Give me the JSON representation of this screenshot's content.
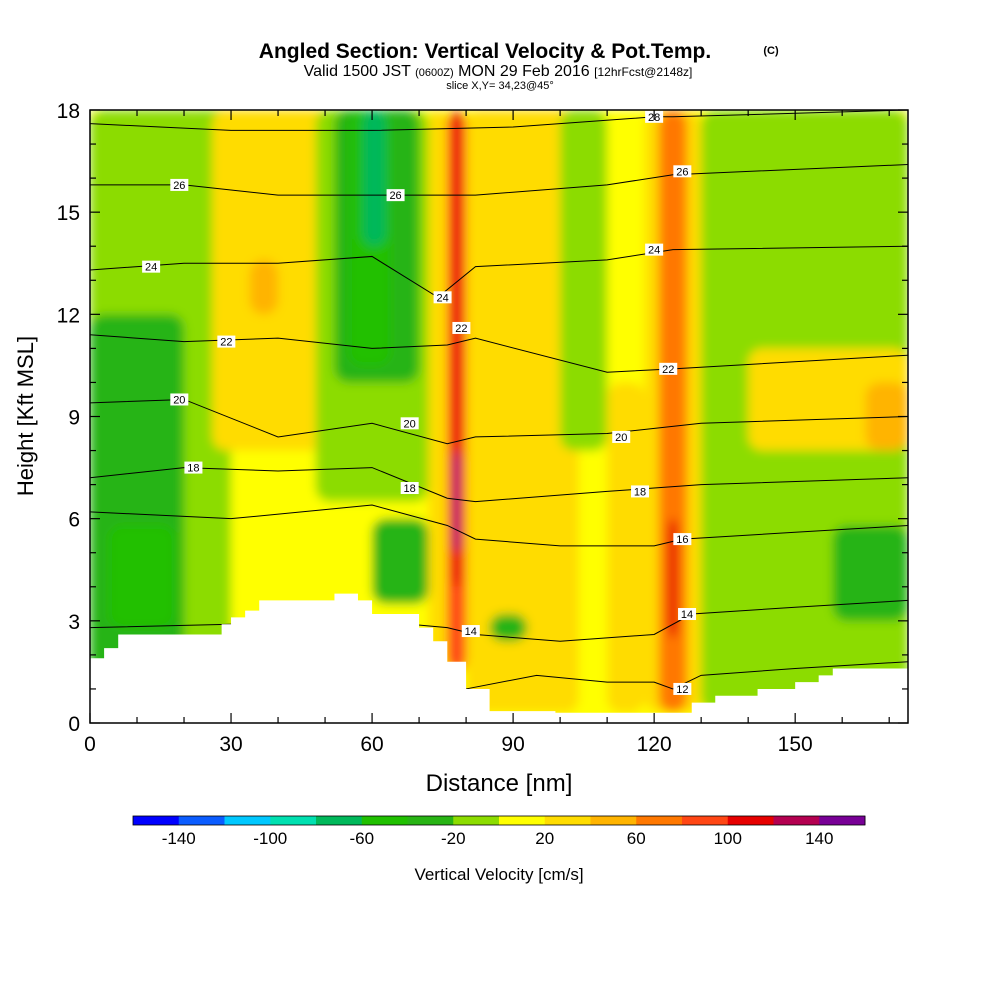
{
  "chart_data": {
    "type": "heatmap",
    "title": "Angled Section: Vertical Velocity & Pot.Temp.",
    "title_unit": "(C)",
    "subtitle_a": "Valid 1500 JST",
    "subtitle_z": "(0600Z)",
    "subtitle_b": "MON 29 Feb 2016",
    "subtitle_fcst": "[12hrFcst@2148z]",
    "slice_label": "slice X,Y= 34,23@45°",
    "xlabel": "Distance [nm]",
    "ylabel": "Height [Kft MSL]",
    "xlim": [
      0,
      174
    ],
    "ylim": [
      0,
      18
    ],
    "x_ticks": [
      "0",
      "30",
      "60",
      "90",
      "120",
      "150"
    ],
    "y_ticks": [
      "0",
      "3",
      "6",
      "9",
      "12",
      "15",
      "18"
    ],
    "colorbar": {
      "label": "Vertical Velocity [cm/s]",
      "tick_labels": [
        "-140",
        "-100",
        "-60",
        "-20",
        "20",
        "60",
        "100",
        "140"
      ],
      "bins": [
        -160,
        -140,
        -120,
        -100,
        -80,
        -60,
        -40,
        -20,
        0,
        20,
        40,
        60,
        80,
        100,
        120,
        140,
        160
      ],
      "colors": [
        "#0000ff",
        "#0a5cff",
        "#00c8ff",
        "#00e0b0",
        "#00b85a",
        "#20c000",
        "#28b414",
        "#8cdc00",
        "#ffff00",
        "#ffdc00",
        "#ffb400",
        "#ff7800",
        "#ff4614",
        "#e60000",
        "#b40050",
        "#780096"
      ]
    },
    "terrain": {
      "x": [
        0,
        3,
        3,
        6,
        6,
        28,
        28,
        30,
        30,
        33,
        33,
        36,
        36,
        52,
        52,
        57,
        57,
        60,
        60,
        70,
        70,
        73,
        73,
        76,
        76,
        80,
        80,
        85,
        85,
        99,
        99,
        120,
        120,
        128,
        128,
        133,
        133,
        142,
        142,
        150,
        150,
        155,
        155,
        158,
        158,
        162,
        162,
        174
      ],
      "y": [
        1.9,
        1.9,
        2.2,
        2.2,
        2.6,
        2.6,
        2.9,
        2.9,
        3.1,
        3.1,
        3.3,
        3.3,
        3.6,
        3.6,
        3.8,
        3.8,
        3.6,
        3.6,
        3.2,
        3.2,
        2.8,
        2.8,
        2.4,
        2.4,
        1.8,
        1.8,
        1.0,
        1.0,
        0.35,
        0.35,
        0.3,
        0.3,
        0.3,
        0.3,
        0.6,
        0.6,
        0.8,
        0.8,
        1.0,
        1.0,
        1.2,
        1.2,
        1.4,
        1.4,
        1.6,
        1.6,
        1.6,
        1.6
      ]
    },
    "velocity_fields": [
      {
        "x": [
          0,
          174
        ],
        "y": [
          0,
          18
        ],
        "value": 0
      },
      {
        "x": [
          0,
          24
        ],
        "y": [
          0,
          18
        ],
        "value": -20
      },
      {
        "x": [
          0,
          20
        ],
        "y": [
          0,
          12
        ],
        "value": -40
      },
      {
        "x": [
          4,
          18
        ],
        "y": [
          2.8,
          5.8
        ],
        "value": -60
      },
      {
        "x": [
          20,
          30
        ],
        "y": [
          2,
          18
        ],
        "value": -20
      },
      {
        "x": [
          26,
          52
        ],
        "y": [
          8,
          18
        ],
        "value": 20
      },
      {
        "x": [
          34,
          40
        ],
        "y": [
          12,
          13.6
        ],
        "value": 40
      },
      {
        "x": [
          48,
          72
        ],
        "y": [
          6.5,
          18
        ],
        "value": -20
      },
      {
        "x": [
          52,
          70
        ],
        "y": [
          10,
          18
        ],
        "value": -40
      },
      {
        "x": [
          55,
          64
        ],
        "y": [
          10.5,
          18
        ],
        "value": -60
      },
      {
        "x": [
          58,
          63
        ],
        "y": [
          14,
          18
        ],
        "value": -80
      },
      {
        "x": [
          60,
          72
        ],
        "y": [
          3.5,
          6
        ],
        "value": -40
      },
      {
        "x": [
          72,
          76
        ],
        "y": [
          1.5,
          18
        ],
        "value": 20
      },
      {
        "x": [
          76,
          80
        ],
        "y": [
          1.5,
          18
        ],
        "value": 80
      },
      {
        "x": [
          77,
          79
        ],
        "y": [
          4,
          18
        ],
        "value": 110
      },
      {
        "x": [
          77.5,
          78.5
        ],
        "y": [
          5,
          8
        ],
        "value": 150
      },
      {
        "x": [
          80,
          104
        ],
        "y": [
          0.3,
          18
        ],
        "value": 20
      },
      {
        "x": [
          85,
          93
        ],
        "y": [
          2.4,
          3.2
        ],
        "value": -40
      },
      {
        "x": [
          100,
          110
        ],
        "y": [
          8,
          18
        ],
        "value": -20
      },
      {
        "x": [
          110,
          118
        ],
        "y": [
          0.3,
          10
        ],
        "value": 20
      },
      {
        "x": [
          118,
          130
        ],
        "y": [
          0.3,
          18
        ],
        "value": 20
      },
      {
        "x": [
          121,
          127
        ],
        "y": [
          0.3,
          18
        ],
        "value": 60
      },
      {
        "x": [
          123,
          125
        ],
        "y": [
          2.5,
          6
        ],
        "value": 100
      },
      {
        "x": [
          130,
          174
        ],
        "y": [
          0.3,
          18
        ],
        "value": -20
      },
      {
        "x": [
          140,
          174
        ],
        "y": [
          8,
          11
        ],
        "value": 20
      },
      {
        "x": [
          165,
          174
        ],
        "y": [
          8,
          10
        ],
        "value": 40
      },
      {
        "x": [
          150,
          174
        ],
        "y": [
          0.3,
          6
        ],
        "value": -20
      },
      {
        "x": [
          158,
          174
        ],
        "y": [
          3,
          5.8
        ],
        "value": -40
      }
    ],
    "isentropes": [
      {
        "value": 12,
        "label": "12",
        "x": [
          80,
          95,
          110,
          120,
          124,
          130,
          150,
          174
        ],
        "y": [
          1.0,
          1.4,
          1.2,
          1.2,
          1.0,
          1.4,
          1.6,
          1.8
        ]
      },
      {
        "value": 14,
        "label": "14",
        "x": [
          0,
          30,
          60,
          76,
          82,
          100,
          120,
          128,
          150,
          174
        ],
        "y": [
          2.8,
          2.9,
          3.0,
          2.8,
          2.6,
          2.4,
          2.6,
          3.2,
          3.4,
          3.6
        ]
      },
      {
        "value": 16,
        "label": "16",
        "x": [
          0,
          30,
          60,
          76,
          82,
          100,
          120,
          126,
          150,
          174
        ],
        "y": [
          6.2,
          6.0,
          6.4,
          5.8,
          5.4,
          5.2,
          5.2,
          5.4,
          5.6,
          5.8
        ]
      },
      {
        "value": 18,
        "label": "18",
        "x": [
          0,
          20,
          40,
          60,
          76,
          82,
          110,
          130,
          174
        ],
        "y": [
          7.2,
          7.5,
          7.4,
          7.5,
          6.6,
          6.5,
          6.8,
          7.0,
          7.2
        ]
      },
      {
        "value": 20,
        "label": "20",
        "x": [
          0,
          20,
          40,
          60,
          76,
          82,
          110,
          130,
          174
        ],
        "y": [
          9.4,
          9.5,
          8.4,
          8.8,
          8.2,
          8.4,
          8.5,
          8.8,
          9.0
        ]
      },
      {
        "value": 22,
        "label": "22",
        "x": [
          0,
          20,
          40,
          60,
          76,
          82,
          110,
          124,
          174
        ],
        "y": [
          11.4,
          11.2,
          11.3,
          11.0,
          11.1,
          11.3,
          10.3,
          10.4,
          10.8
        ]
      },
      {
        "value": 24,
        "label": "24",
        "x": [
          0,
          20,
          40,
          60,
          74,
          82,
          110,
          124,
          174
        ],
        "y": [
          13.3,
          13.5,
          13.5,
          13.7,
          12.5,
          13.4,
          13.6,
          13.9,
          14.0
        ]
      },
      {
        "value": 26,
        "label": "26",
        "x": [
          0,
          20,
          40,
          62,
          82,
          110,
          124,
          174
        ],
        "y": [
          15.8,
          15.8,
          15.5,
          15.5,
          15.5,
          15.8,
          16.1,
          16.4
        ]
      },
      {
        "value": 28,
        "label": "28",
        "x": [
          0,
          30,
          60,
          90,
          120,
          124,
          174
        ],
        "y": [
          17.6,
          17.4,
          17.4,
          17.5,
          17.8,
          17.8,
          18.0
        ]
      }
    ],
    "contour_labels": [
      {
        "text": "26",
        "x": 19,
        "y": 15.8
      },
      {
        "text": "24",
        "x": 13,
        "y": 13.4
      },
      {
        "text": "22",
        "x": 29,
        "y": 11.2
      },
      {
        "text": "20",
        "x": 19,
        "y": 9.5
      },
      {
        "text": "18",
        "x": 22,
        "y": 7.5
      },
      {
        "text": "26",
        "x": 65,
        "y": 15.5
      },
      {
        "text": "24",
        "x": 75,
        "y": 12.5
      },
      {
        "text": "22",
        "x": 79,
        "y": 11.6
      },
      {
        "text": "20",
        "x": 68,
        "y": 8.8
      },
      {
        "text": "18",
        "x": 68,
        "y": 6.9
      },
      {
        "text": "14",
        "x": 81,
        "y": 2.7
      },
      {
        "text": "28",
        "x": 120,
        "y": 17.8
      },
      {
        "text": "26",
        "x": 126,
        "y": 16.2
      },
      {
        "text": "24",
        "x": 120,
        "y": 13.9
      },
      {
        "text": "22",
        "x": 123,
        "y": 10.4
      },
      {
        "text": "20",
        "x": 113,
        "y": 8.4
      },
      {
        "text": "18",
        "x": 117,
        "y": 6.8
      },
      {
        "text": "16",
        "x": 126,
        "y": 5.4
      },
      {
        "text": "14",
        "x": 127,
        "y": 3.2
      },
      {
        "text": "12",
        "x": 126,
        "y": 1.0
      }
    ]
  }
}
